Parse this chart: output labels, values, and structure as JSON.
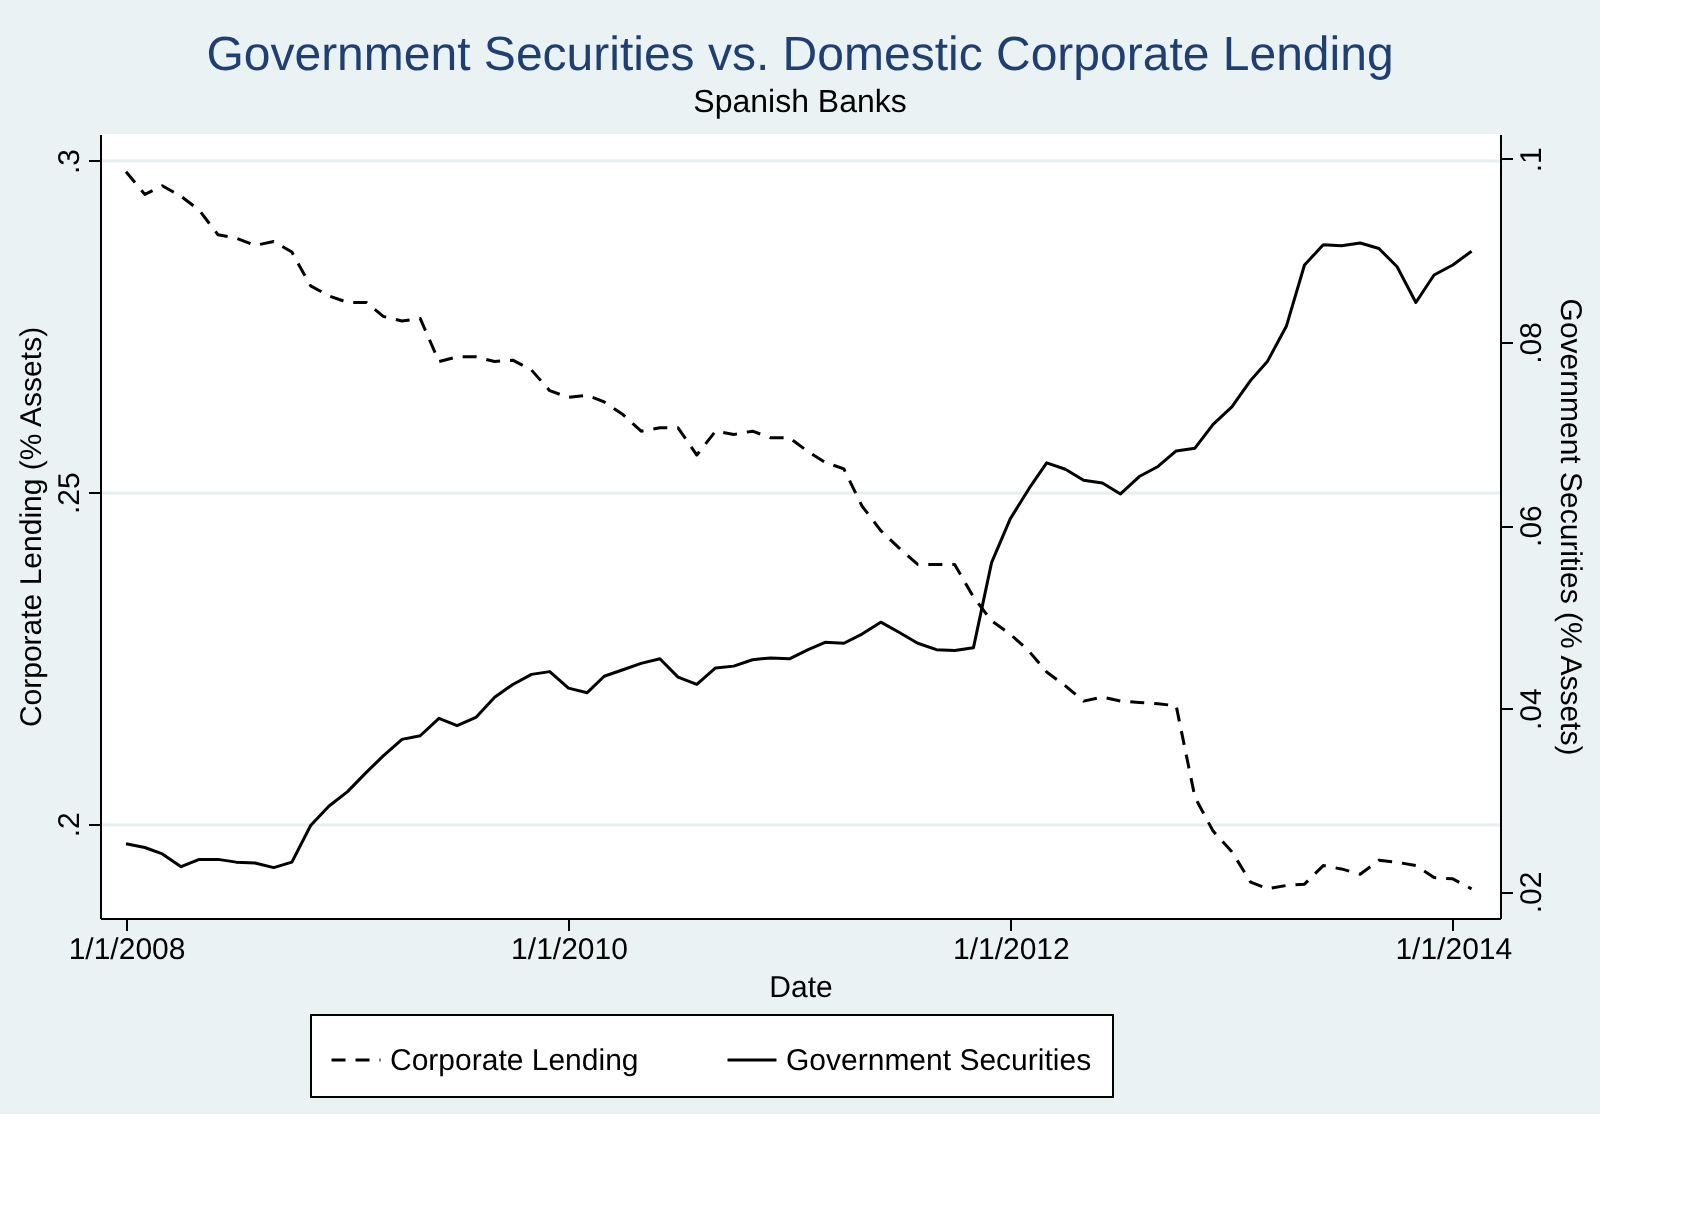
{
  "chart_data": {
    "type": "line",
    "title": "Government Securities vs. Domestic Corporate Lending",
    "subtitle": "Spanish Banks",
    "xlabel": "Date",
    "ylabel": "Corporate Lending (% Assets)",
    "y2label": "Government Securities (% Assets)",
    "x": [
      "2008-01",
      "2008-02",
      "2008-03",
      "2008-04",
      "2008-05",
      "2008-06",
      "2008-07",
      "2008-08",
      "2008-09",
      "2008-10",
      "2008-11",
      "2008-12",
      "2009-01",
      "2009-02",
      "2009-03",
      "2009-04",
      "2009-05",
      "2009-06",
      "2009-07",
      "2009-08",
      "2009-09",
      "2009-10",
      "2009-11",
      "2009-12",
      "2010-01",
      "2010-02",
      "2010-03",
      "2010-04",
      "2010-05",
      "2010-06",
      "2010-07",
      "2010-08",
      "2010-09",
      "2010-10",
      "2010-11",
      "2010-12",
      "2011-01",
      "2011-02",
      "2011-03",
      "2011-04",
      "2011-05",
      "2011-06",
      "2011-07",
      "2011-08",
      "2011-09",
      "2011-10",
      "2011-11",
      "2011-12",
      "2012-01",
      "2012-02",
      "2012-03",
      "2012-04",
      "2012-05",
      "2012-06",
      "2012-07",
      "2012-08",
      "2012-09",
      "2012-10",
      "2012-11",
      "2012-12",
      "2013-01",
      "2013-02",
      "2013-03",
      "2013-04",
      "2013-05",
      "2013-06",
      "2013-07",
      "2013-08",
      "2013-09",
      "2013-10",
      "2013-11",
      "2013-12",
      "2014-01",
      "2014-02"
    ],
    "series": [
      {
        "name": "Corporate Lending",
        "color": "#000000",
        "line_style": "dashed",
        "values": [
          0.2983,
          0.2949,
          0.2962,
          0.2946,
          0.2925,
          0.2888,
          0.2883,
          0.2872,
          0.2878,
          0.2862,
          0.2811,
          0.2796,
          0.2786,
          0.2786,
          0.2765,
          0.2758,
          0.2762,
          0.2697,
          0.2704,
          0.2704,
          0.2697,
          0.2699,
          0.2684,
          0.2653,
          0.2643,
          0.2646,
          0.2636,
          0.2617,
          0.2592,
          0.2597,
          0.2597,
          0.2556,
          0.2592,
          0.2587,
          0.2592,
          0.2582,
          0.2582,
          0.2561,
          0.2545,
          0.2535,
          0.2479,
          0.2442,
          0.2416,
          0.2391,
          0.2391,
          0.2391,
          0.2342,
          0.2306,
          0.2286,
          0.226,
          0.2229,
          0.2208,
          0.2185,
          0.2191,
          0.2185,
          0.2183,
          0.2181,
          0.2178,
          0.204,
          0.1989,
          0.1958,
          0.1912,
          0.1902,
          0.1907,
          0.1909,
          0.1937,
          0.1932,
          0.1924,
          0.1945,
          0.1942,
          0.1937,
          0.1919,
          0.1917,
          0.1902
        ]
      },
      {
        "name": "Government Securities",
        "color": "#000000",
        "line_style": "solid",
        "axis": "y2",
        "values": [
          0.0252,
          0.0248,
          0.0241,
          0.0227,
          0.0235,
          0.0235,
          0.0232,
          0.0231,
          0.0226,
          0.0232,
          0.0272,
          0.0293,
          0.0309,
          0.033,
          0.0348,
          0.0366,
          0.037,
          0.0389,
          0.0381,
          0.039,
          0.0412,
          0.0426,
          0.0437,
          0.044,
          0.0422,
          0.0417,
          0.0435,
          0.0442,
          0.0449,
          0.0454,
          0.0434,
          0.0426,
          0.0444,
          0.0446,
          0.0453,
          0.0455,
          0.0454,
          0.0464,
          0.0472,
          0.0471,
          0.0481,
          0.0494,
          0.0483,
          0.0471,
          0.0464,
          0.0463,
          0.0466,
          0.0559,
          0.0607,
          0.064,
          0.0668,
          0.0661,
          0.0649,
          0.0646,
          0.0634,
          0.0653,
          0.0664,
          0.0681,
          0.0684,
          0.071,
          0.0729,
          0.0758,
          0.0779,
          0.0817,
          0.0884,
          0.0906,
          0.0905,
          0.0908,
          0.0902,
          0.0882,
          0.0843,
          0.0873,
          0.0884,
          0.0899
        ]
      }
    ],
    "xlim": [
      "2007-11-19",
      "2014-03-20"
    ],
    "xticks": [
      {
        "value": "2008-01-01",
        "label": "1/1/2008"
      },
      {
        "value": "2010-01-01",
        "label": "1/1/2010"
      },
      {
        "value": "2012-01-01",
        "label": "1/1/2012"
      },
      {
        "value": "2014-01-01",
        "label": "1/1/2014"
      }
    ],
    "ylim": [
      0.1858,
      0.304
    ],
    "yticks": [
      {
        "value": 0.2,
        "label": ".2"
      },
      {
        "value": 0.25,
        "label": ".25"
      },
      {
        "value": 0.3,
        "label": ".3"
      }
    ],
    "y2lim": [
      0.0171,
      0.1027
    ],
    "y2ticks": [
      {
        "value": 0.02,
        "label": ".02"
      },
      {
        "value": 0.04,
        "label": ".04"
      },
      {
        "value": 0.06,
        "label": ".06"
      },
      {
        "value": 0.08,
        "label": ".08"
      },
      {
        "value": 0.1,
        "label": ".1"
      }
    ],
    "grid": "y",
    "legend": "bottom"
  }
}
